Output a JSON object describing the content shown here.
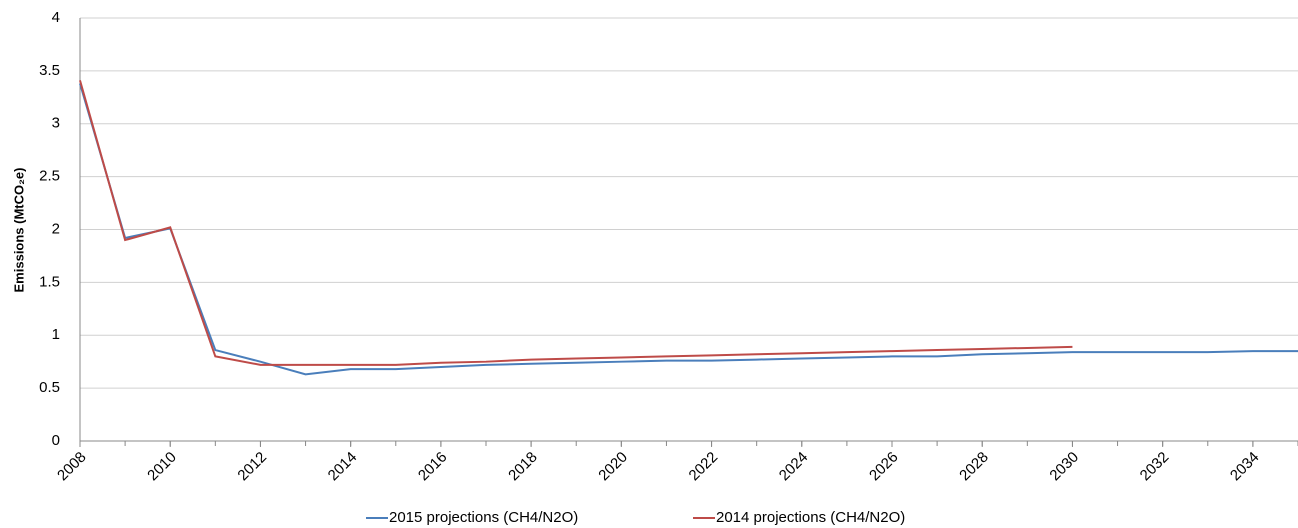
{
  "chart_data": {
    "type": "line",
    "y_label": "Emissions (MtCO₂e)",
    "x": [
      2008,
      2009,
      2010,
      2011,
      2012,
      2013,
      2014,
      2015,
      2016,
      2017,
      2018,
      2019,
      2020,
      2021,
      2022,
      2023,
      2024,
      2025,
      2026,
      2027,
      2028,
      2029,
      2030,
      2031,
      2032,
      2033,
      2034,
      2035
    ],
    "series": [
      {
        "name": "2015 projections (CH4/N2O)",
        "color": "#4a7ebb",
        "values": [
          3.38,
          1.92,
          2.01,
          0.86,
          0.75,
          0.63,
          0.68,
          0.68,
          0.7,
          0.72,
          0.73,
          0.74,
          0.75,
          0.76,
          0.76,
          0.77,
          0.78,
          0.79,
          0.8,
          0.8,
          0.82,
          0.83,
          0.84,
          0.84,
          0.84,
          0.84,
          0.85,
          0.85
        ]
      },
      {
        "name": "2014 projections (CH4/N2O)",
        "color": "#be4b48",
        "values": [
          3.41,
          1.9,
          2.02,
          0.8,
          0.72,
          0.72,
          0.72,
          0.72,
          0.74,
          0.75,
          0.77,
          0.78,
          0.79,
          0.8,
          0.81,
          0.82,
          0.83,
          0.84,
          0.85,
          0.86,
          0.87,
          0.88,
          0.89,
          null,
          null,
          null,
          null,
          null
        ]
      }
    ],
    "xlim": [
      2008,
      2035
    ],
    "xticks": [
      2008,
      2010,
      2012,
      2014,
      2016,
      2018,
      2020,
      2022,
      2024,
      2026,
      2028,
      2030,
      2032,
      2034
    ],
    "ylim": [
      0,
      4
    ],
    "yticks": [
      0,
      0.5,
      1,
      1.5,
      2,
      2.5,
      3,
      3.5,
      4
    ],
    "grid": true,
    "legend": "bottom"
  }
}
